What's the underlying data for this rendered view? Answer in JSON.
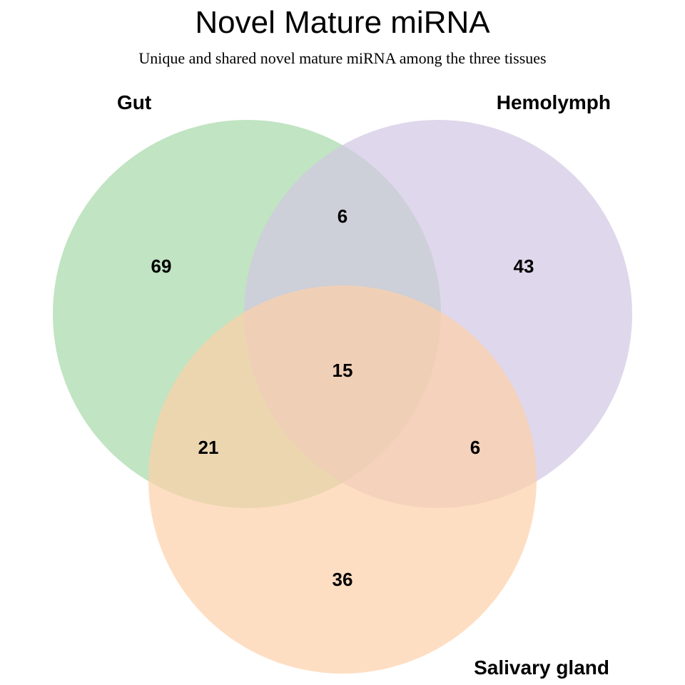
{
  "title": "Novel Mature miRNA",
  "subtitle": "Unique and shared novel mature miRNA among the three tissues",
  "sets": [
    {
      "name": "Gut",
      "color": "#a6d9a8"
    },
    {
      "name": "Hemolymph",
      "color": "#d2c6e2"
    },
    {
      "name": "Salivary gland",
      "color": "#fdd0a8"
    }
  ],
  "regions": {
    "gut_only": "69",
    "hemolymph_only": "43",
    "salivary_only": "36",
    "gut_hemolymph": "6",
    "gut_salivary": "21",
    "hemolymph_salivary": "6",
    "all_three": "15"
  }
}
